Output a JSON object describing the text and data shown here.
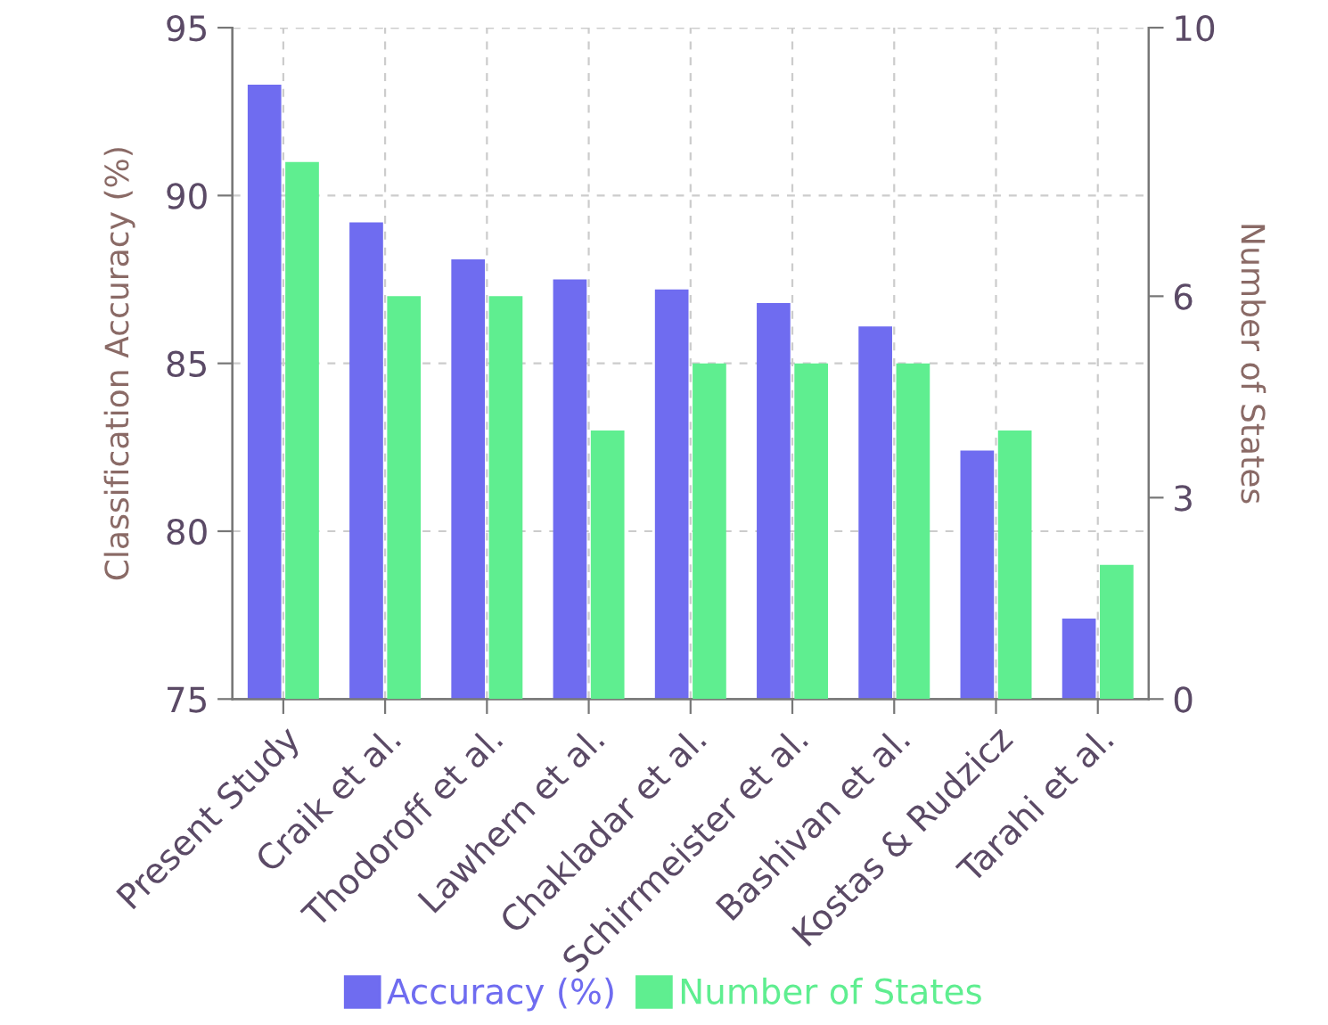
{
  "chart_data": {
    "type": "bar",
    "ylabel": "Classification Accuracy (%)",
    "y2label": "Number of States",
    "categories": [
      "Present Study",
      "Craik et al.",
      "Thodoroff et al.",
      "Lawhern et al.",
      "Chakladar et al.",
      "Schirrmeister et al.",
      "Bashivan et al.",
      "Kostas & Rudzicz",
      "Tarahi et al."
    ],
    "series": [
      {
        "name": "Accuracy (%)",
        "color": "#6f6cf0",
        "values": [
          93.3,
          89.2,
          88.1,
          87.5,
          87.2,
          86.8,
          86.1,
          82.4,
          77.4
        ]
      },
      {
        "name": "Number of States",
        "color": "#5fee90",
        "axis": "y2",
        "values": [
          8,
          6,
          6,
          4,
          5,
          5,
          5,
          4,
          2
        ]
      }
    ],
    "ylim": [
      75,
      95
    ],
    "yticks": [
      75,
      80,
      85,
      90,
      95
    ],
    "y2lim": [
      0,
      10
    ],
    "y2ticks": [
      0,
      3,
      6,
      10
    ],
    "grid": true,
    "legend": "bottom"
  }
}
